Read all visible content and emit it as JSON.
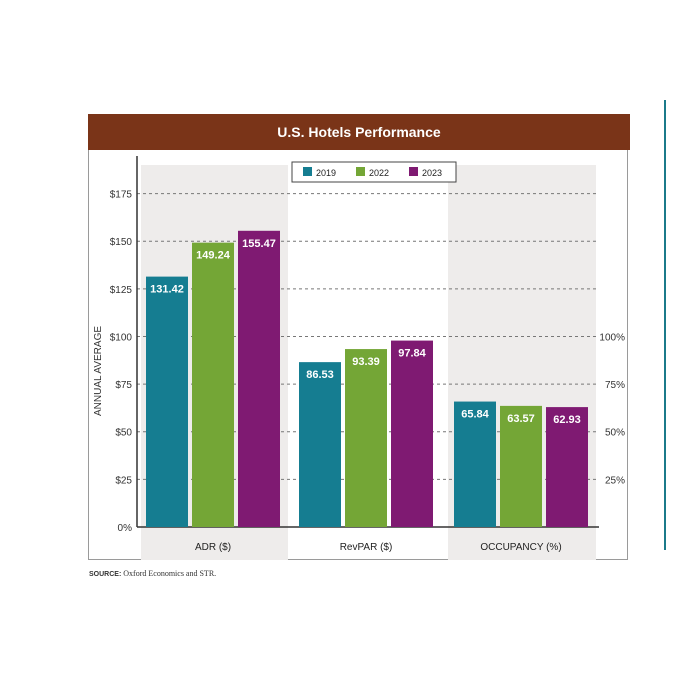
{
  "chart_data": {
    "type": "bar",
    "title": "U.S. Hotels Performance",
    "ylabel": "ANNUAL AVERAGE",
    "categories": [
      "ADR ($)",
      "RevPAR ($)",
      "OCCUPANCY (%)"
    ],
    "series": [
      {
        "name": "2019",
        "values": [
          131.42,
          86.53,
          65.84
        ]
      },
      {
        "name": "2022",
        "values": [
          149.24,
          93.39,
          63.57
        ]
      },
      {
        "name": "2023",
        "values": [
          155.47,
          97.84,
          62.93
        ]
      }
    ],
    "ylim": [
      0,
      190
    ],
    "left_axis_ticks": [
      {
        "value": 0,
        "label": "0%"
      },
      {
        "value": 25,
        "label": "$25"
      },
      {
        "value": 50,
        "label": "$50"
      },
      {
        "value": 75,
        "label": "$75"
      },
      {
        "value": 100,
        "label": "$100"
      },
      {
        "value": 125,
        "label": "$125"
      },
      {
        "value": 150,
        "label": "$150"
      },
      {
        "value": 175,
        "label": "$175"
      }
    ],
    "right_axis_ticks": [
      {
        "value": 25,
        "label": "25%"
      },
      {
        "value": 50,
        "label": "50%"
      },
      {
        "value": 75,
        "label": "75%"
      },
      {
        "value": 100,
        "label": "100%"
      }
    ],
    "legend_position": "top-center",
    "grid": "dashed horizontal",
    "colors": {
      "series": [
        "#157d91",
        "#74a636",
        "#7f1a72"
      ],
      "title_bar": "#7a3418",
      "panel_shade": "#eeeceb",
      "side_rule": "#1b7a8a"
    }
  },
  "source": {
    "label": "SOURCE:",
    "text": "Oxford Economics and STR."
  }
}
